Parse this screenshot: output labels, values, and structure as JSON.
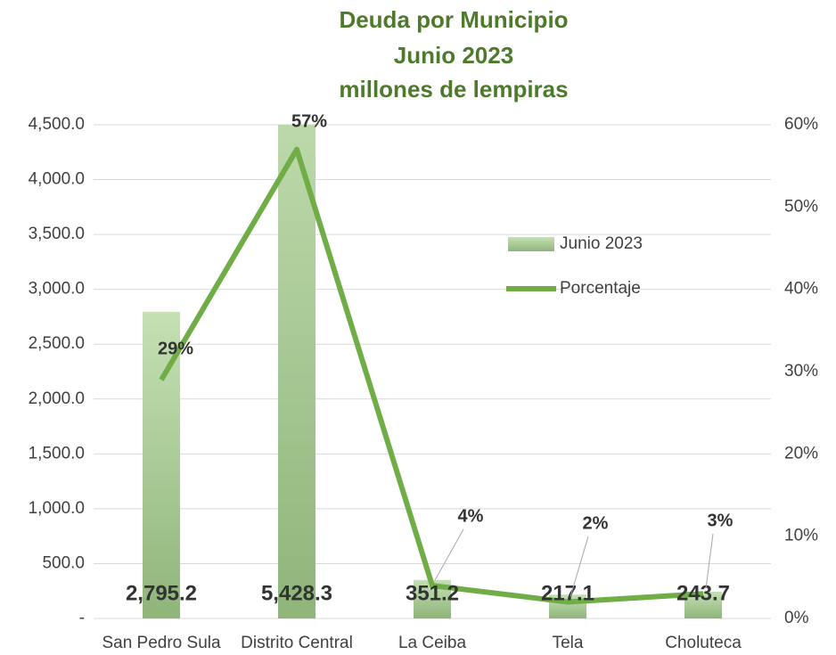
{
  "chart_data": {
    "type": "bar",
    "title": [
      "Deuda por Municipio",
      "Junio 2023",
      "millones de lempiras"
    ],
    "categories": [
      "San Pedro Sula",
      "Distrito Central",
      "La Ceiba",
      "Tela",
      "Choluteca"
    ],
    "series": [
      {
        "name": "Junio 2023",
        "type": "bar",
        "color": "#a9d18e",
        "values": [
          2795.2,
          5428.3,
          351.2,
          217.1,
          243.7
        ],
        "value_labels": [
          "2,795.2",
          "5,428.3",
          "351.2",
          "217.1",
          "243.7"
        ]
      },
      {
        "name": "Porcentaje",
        "type": "line",
        "axis": "y2",
        "color": "#70ad47",
        "values": [
          29,
          57,
          4,
          2,
          3
        ],
        "value_labels": [
          "29%",
          "57%",
          "4%",
          "2%",
          "3%"
        ]
      }
    ],
    "ylim": [
      0,
      4500
    ],
    "yticks": [
      {
        "value": 0,
        "label": "-"
      },
      {
        "value": 500,
        "label": "500.0"
      },
      {
        "value": 1000,
        "label": "1,000.0"
      },
      {
        "value": 1500,
        "label": "1,500.0"
      },
      {
        "value": 2000,
        "label": "2,000.0"
      },
      {
        "value": 2500,
        "label": "2,500.0"
      },
      {
        "value": 3000,
        "label": "3,000.0"
      },
      {
        "value": 3500,
        "label": "3,500.0"
      },
      {
        "value": 4000,
        "label": "4,000.0"
      },
      {
        "value": 4500,
        "label": "4,500.0"
      }
    ],
    "y2lim": [
      0,
      60
    ],
    "y2ticks": [
      {
        "value": 0,
        "label": "0%"
      },
      {
        "value": 10,
        "label": "10%"
      },
      {
        "value": 20,
        "label": "20%"
      },
      {
        "value": 30,
        "label": "30%"
      },
      {
        "value": 40,
        "label": "40%"
      },
      {
        "value": 50,
        "label": "50%"
      },
      {
        "value": 60,
        "label": "60%"
      }
    ],
    "grid": true,
    "legend": "right"
  }
}
